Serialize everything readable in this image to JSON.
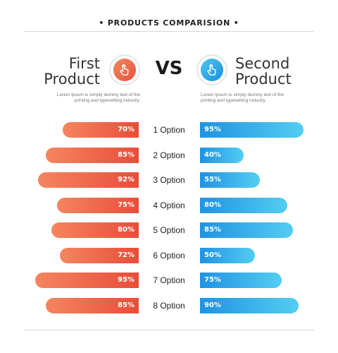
{
  "header": {
    "title": "• PRODUCTS COMPARISION •"
  },
  "products": {
    "first": {
      "line1": "First",
      "line2": "Product",
      "icon": "pointer-hand-icon",
      "color": "#e8523e"
    },
    "second": {
      "line1": "Second",
      "line2": "Product",
      "icon": "pointer-hand-icon",
      "color": "#1a8fe0"
    }
  },
  "vs_label": "VS",
  "descriptions": {
    "first": "Lorem Ipsum is simply dummy text of the printing and typesetting industry.",
    "second": "Lorem Ipsum is simply dummy text of the printing and typesetting industry."
  },
  "chart_data": {
    "type": "bar",
    "categories": [
      "1 Option",
      "2 Option",
      "3 Option",
      "4 Option",
      "5 Option",
      "6 Option",
      "7 Option",
      "8 Option"
    ],
    "series": [
      {
        "values": [
          70,
          85,
          92,
          75,
          80,
          72,
          95,
          85
        ],
        "labels": [
          "70%",
          "85%",
          "92%",
          "75%",
          "80%",
          "72%",
          "95%",
          "85%"
        ],
        "color": "#e84d3a"
      },
      {
        "values": [
          95,
          40,
          55,
          80,
          85,
          50,
          75,
          90
        ],
        "labels": [
          "95%",
          "40%",
          "55%",
          "80%",
          "85%",
          "50%",
          "75%",
          "90%"
        ],
        "color": "#1f93e2"
      }
    ],
    "ylim": [
      0,
      100
    ],
    "grid": false,
    "legend": "none"
  }
}
